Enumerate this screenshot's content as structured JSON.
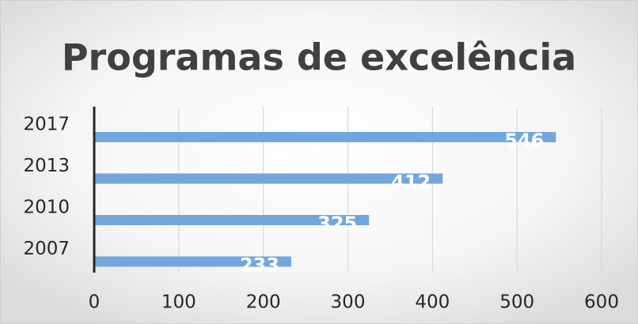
{
  "chart_data": {
    "type": "bar",
    "orientation": "horizontal",
    "title": "Programas de excelência",
    "categories": [
      "2007",
      "2010",
      "2013",
      "2017"
    ],
    "values": [
      233,
      325,
      412,
      546
    ],
    "color": "#72a7dd",
    "xlim": [
      0,
      600
    ],
    "xticks": [
      0,
      100,
      200,
      300,
      400,
      500,
      600
    ],
    "grid": true,
    "data_labels": true
  }
}
